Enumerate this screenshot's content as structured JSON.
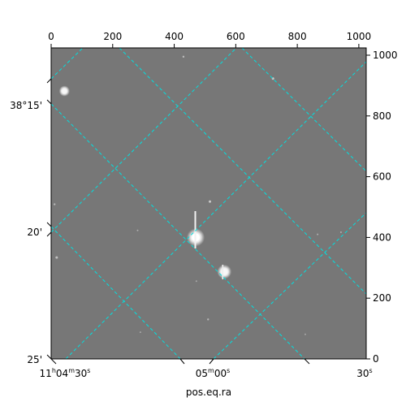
{
  "chart_data": {
    "type": "image",
    "grid": true,
    "grid_color": "#00e0e0",
    "image_background": "#777777",
    "frame_color": "#000000",
    "xlabel": "pos.eq.ra",
    "top_axis": {
      "range": [
        0,
        1024
      ],
      "ticks": [
        0,
        200,
        400,
        600,
        800,
        1000
      ]
    },
    "right_axis": {
      "range": [
        0,
        1024
      ],
      "ticks": [
        0,
        200,
        400,
        600,
        800,
        1000
      ]
    },
    "bottom_axis": {
      "ticks": [
        {
          "label": "11h04m30s",
          "main": "11",
          "h": "h",
          "m1": "04",
          "m": "m",
          "s1": "30",
          "s": "s"
        },
        {
          "label": "05m00s",
          "m1": "05",
          "m": "m",
          "s1": "00",
          "s": "s"
        },
        {
          "label": "30s",
          "s1": "30",
          "s": "s"
        }
      ]
    },
    "left_axis": {
      "ticks": [
        {
          "label": "38°15'"
        },
        {
          "label": "20'"
        },
        {
          "label": "25'"
        }
      ]
    },
    "sources": [
      {
        "x": 470,
        "y": 400,
        "brightness": 1.0,
        "r": 5
      },
      {
        "x": 563,
        "y": 287,
        "brightness": 0.95,
        "r": 4
      },
      {
        "x": 43,
        "y": 882,
        "brightness": 0.95,
        "r": 3
      },
      {
        "x": 516,
        "y": 518,
        "brightness": 0.6,
        "r": 1.5
      },
      {
        "x": 721,
        "y": 923,
        "brightness": 0.6,
        "r": 1.5
      },
      {
        "x": 18,
        "y": 334,
        "brightness": 0.55,
        "r": 1.5
      },
      {
        "x": 430,
        "y": 995,
        "brightness": 0.5,
        "r": 1.2
      },
      {
        "x": 510,
        "y": 130,
        "brightness": 0.45,
        "r": 1.2
      },
      {
        "x": 11,
        "y": 509,
        "brightness": 0.45,
        "r": 1.2
      },
      {
        "x": 281,
        "y": 423,
        "brightness": 0.4,
        "r": 1
      },
      {
        "x": 866,
        "y": 410,
        "brightness": 0.4,
        "r": 1
      },
      {
        "x": 942,
        "y": 417,
        "brightness": 0.4,
        "r": 1
      },
      {
        "x": 826,
        "y": 81,
        "brightness": 0.35,
        "r": 1
      },
      {
        "x": 290,
        "y": 88,
        "brightness": 0.35,
        "r": 1
      },
      {
        "x": 472,
        "y": 256,
        "brightness": 0.35,
        "r": 1
      }
    ]
  }
}
